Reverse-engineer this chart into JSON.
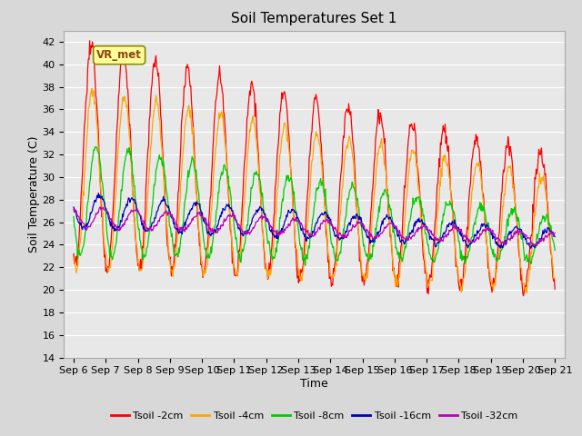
{
  "title": "Soil Temperatures Set 1",
  "xlabel": "Time",
  "ylabel": "Soil Temperature (C)",
  "ylim": [
    14,
    43
  ],
  "yticks": [
    14,
    16,
    18,
    20,
    22,
    24,
    26,
    28,
    30,
    32,
    34,
    36,
    38,
    40,
    42
  ],
  "xtick_labels": [
    "Sep 6",
    "Sep 7",
    "Sep 8",
    "Sep 9",
    "Sep 10",
    "Sep 11",
    "Sep 12",
    "Sep 13",
    "Sep 14",
    "Sep 15",
    "Sep 16",
    "Sep 17",
    "Sep 18",
    "Sep 19",
    "Sep 20",
    "Sep 21"
  ],
  "num_days": 16,
  "line_colors": [
    "#ff0000",
    "#ffa500",
    "#00cc00",
    "#0000bb",
    "#bb00bb"
  ],
  "line_labels": [
    "Tsoil -2cm",
    "Tsoil -4cm",
    "Tsoil -8cm",
    "Tsoil -16cm",
    "Tsoil -32cm"
  ],
  "fig_bg_color": "#d8d8d8",
  "plot_bg_color": "#e8e8e8",
  "annotation_text": "VR_met",
  "annotation_color": "#8B4513",
  "annotation_bg": "#ffff99",
  "title_fontsize": 11,
  "axis_label_fontsize": 9,
  "tick_fontsize": 8
}
